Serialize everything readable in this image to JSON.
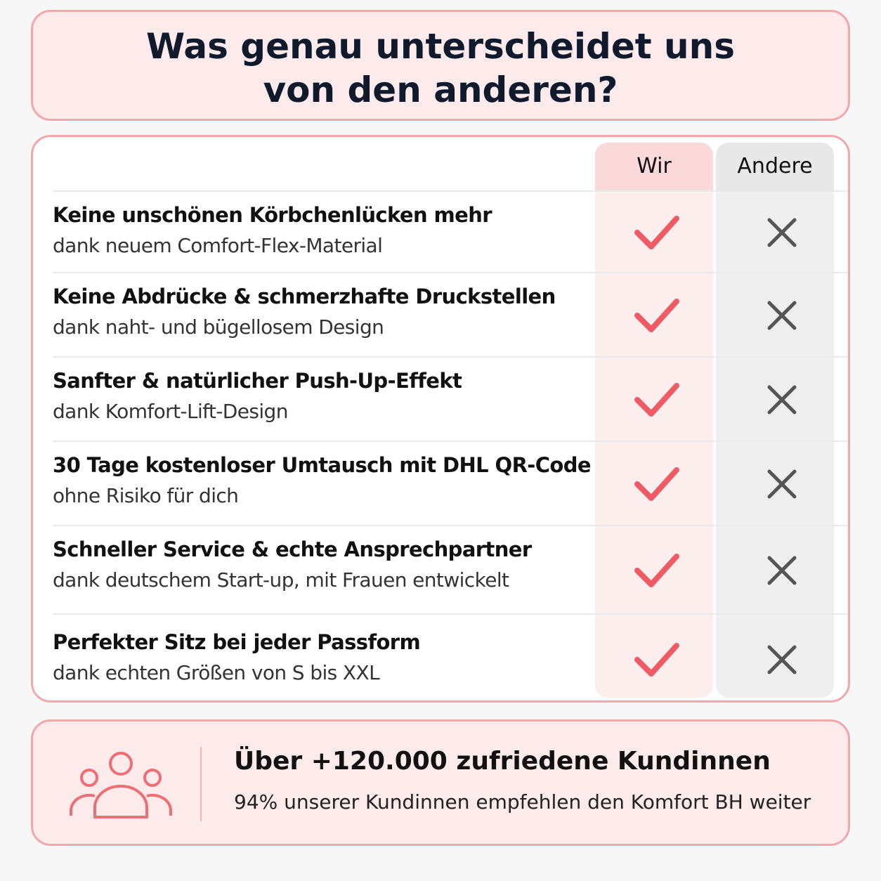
{
  "header": {
    "title_line1": "Was genau unterscheidet uns",
    "title_line2": "von den anderen?"
  },
  "table": {
    "columns": [
      "Wir",
      "Andere"
    ],
    "rows": [
      {
        "title": "Keine unschönen Körbchenlücken mehr",
        "subtitle": "dank neuem Comfort-Flex-Material"
      },
      {
        "title": "Keine Abdrücke & schmerzhafte Druckstellen",
        "subtitle": "dank naht- und bügellosem Design"
      },
      {
        "title": "Sanfter & natürlicher Push-Up-Effekt",
        "subtitle": "dank Komfort-Lift-Design"
      },
      {
        "title": "30 Tage kostenloser Umtausch mit DHL QR-Code",
        "subtitle": "ohne Risiko für dich"
      },
      {
        "title": "Schneller Service & echte Ansprechpartner",
        "subtitle": "dank deutschem Start-up, mit Frauen entwickelt"
      },
      {
        "title": "Perfekter Sitz bei jeder Passform",
        "subtitle": "dank echten Größen von S bis XXL"
      }
    ]
  },
  "footer": {
    "title": "Über +120.000 zufriedene Kundinnen",
    "subtitle": "94% unserer Kundinnen empfehlen den Komfort BH weiter"
  }
}
